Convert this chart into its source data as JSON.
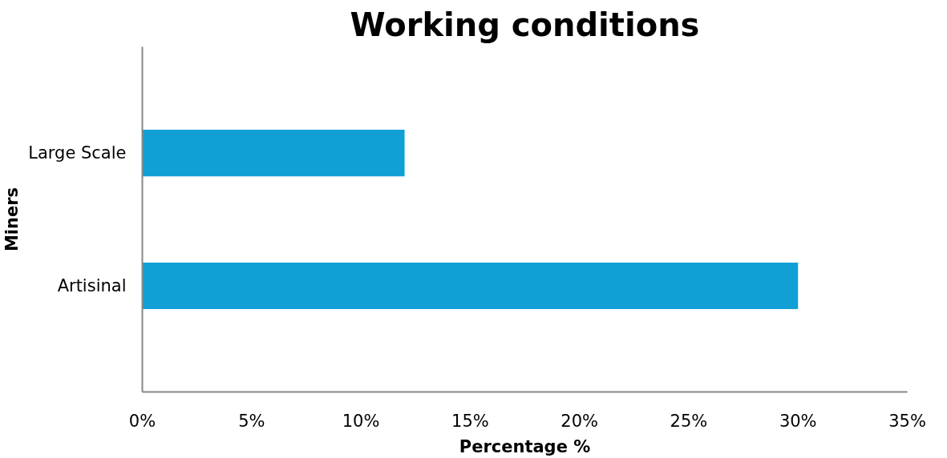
{
  "chart_data": {
    "type": "bar",
    "orientation": "horizontal",
    "title": "Working conditions",
    "xlabel": "Percentage %",
    "ylabel": "Miners",
    "categories": [
      "Large Scale",
      "Artisinal"
    ],
    "series": [
      {
        "color": "#119fd6",
        "values": [
          12,
          30
        ]
      }
    ],
    "xlim": [
      0,
      35
    ],
    "xticks": [
      {
        "value": 0,
        "label": "0%"
      },
      {
        "value": 5,
        "label": "5%"
      },
      {
        "value": 10,
        "label": "10%"
      },
      {
        "value": 15,
        "label": "15%"
      },
      {
        "value": 20,
        "label": "20%"
      },
      {
        "value": 25,
        "label": "25%"
      },
      {
        "value": 30,
        "label": "30%"
      },
      {
        "value": 35,
        "label": "35%"
      }
    ],
    "grid": false
  }
}
